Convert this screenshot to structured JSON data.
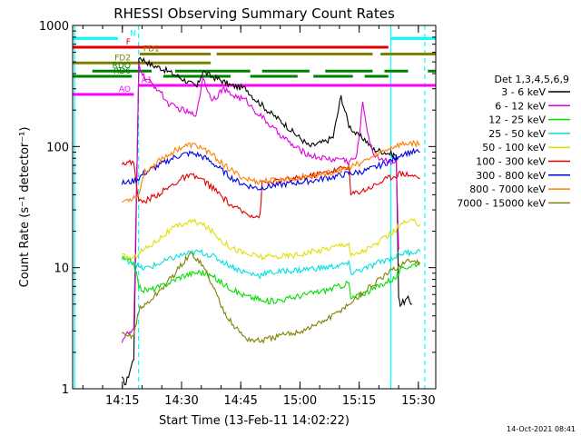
{
  "chart_data": {
    "type": "line",
    "title": "RHESSI Observing Summary Count Rates",
    "xlabel": "Start Time (13-Feb-11 14:02:22)",
    "ylabel": "Count Rate (s⁻¹ detector⁻¹)",
    "ylim": [
      1,
      1000
    ],
    "yscale": "log",
    "xlim_minutes": [
      0,
      92
    ],
    "x_ticks": [
      {
        "t": 12.6,
        "label": "14:15"
      },
      {
        "t": 27.6,
        "label": "14:30"
      },
      {
        "t": 42.6,
        "label": "14:45"
      },
      {
        "t": 57.6,
        "label": "15:00"
      },
      {
        "t": 72.6,
        "label": "15:15"
      },
      {
        "t": 87.6,
        "label": "15:30"
      }
    ],
    "y_ticks": [
      {
        "v": 1,
        "label": "1"
      },
      {
        "v": 10,
        "label": "10"
      },
      {
        "v": 100,
        "label": "100"
      },
      {
        "v": 1000,
        "label": "1000"
      }
    ],
    "legend_title": "Det 1,3,4,5,6,9",
    "legend_position": "right",
    "series": [
      {
        "name": "3 - 6 keV",
        "color": "#000000",
        "t": [
          12.5,
          13.5,
          15.5,
          16.8,
          18,
          20,
          22,
          24,
          26,
          28,
          30,
          31.5,
          33,
          35,
          37,
          38.5,
          40,
          42,
          44,
          46,
          48,
          50,
          52,
          54,
          56,
          58,
          60,
          62,
          64,
          66,
          68,
          70,
          72,
          74,
          75,
          76,
          78,
          80,
          82,
          82.6,
          83,
          85,
          86
        ],
        "values": [
          1.2,
          1.1,
          1.8,
          550,
          520,
          470,
          450,
          420,
          390,
          360,
          330,
          310,
          420,
          380,
          360,
          340,
          320,
          310,
          300,
          250,
          220,
          190,
          170,
          150,
          130,
          115,
          100,
          105,
          110,
          120,
          260,
          150,
          125,
          115,
          105,
          95,
          92,
          88,
          85,
          6,
          5,
          5.5,
          5
        ]
      },
      {
        "name": "6 - 12 keV",
        "color": "#e000e0",
        "t": [
          12.5,
          13.5,
          15.5,
          16.8,
          18,
          20,
          22,
          24,
          26,
          28,
          30,
          31.5,
          33,
          35,
          36.5,
          38,
          40,
          42,
          44,
          46,
          48,
          50,
          52,
          54,
          56,
          58,
          60,
          62,
          64,
          66,
          68,
          70,
          72,
          73.5,
          75,
          76,
          78,
          80,
          82,
          82.6
        ],
        "values": [
          2.5,
          2.8,
          3,
          480,
          380,
          330,
          290,
          230,
          210,
          200,
          185,
          190,
          380,
          250,
          260,
          300,
          270,
          255,
          240,
          200,
          175,
          150,
          130,
          115,
          100,
          92,
          85,
          82,
          80,
          78,
          80,
          75,
          82,
          230,
          120,
          88,
          80,
          76,
          74,
          14
        ]
      },
      {
        "name": "12 - 25 keV",
        "color": "#00e000",
        "t": [
          12.5,
          13.5,
          15.5,
          16.8,
          18,
          20,
          22,
          24,
          26,
          28,
          30,
          32,
          34,
          36,
          38,
          40,
          42,
          44,
          46,
          47.5,
          48,
          50,
          52,
          54,
          56,
          58,
          60,
          62,
          64,
          66,
          68,
          70,
          70.5,
          72,
          74,
          76,
          78,
          80,
          82,
          82.6,
          84,
          86,
          88
        ],
        "values": [
          12,
          11.5,
          11,
          7,
          6.5,
          6.6,
          6.9,
          7.4,
          8,
          8.6,
          8.9,
          9.2,
          8.9,
          8.2,
          7.4,
          6.8,
          6.2,
          5.8,
          5.6,
          5.5,
          5.2,
          5.3,
          5.4,
          5.5,
          5.7,
          5.9,
          6.1,
          6.3,
          6.5,
          6.8,
          7.1,
          7.5,
          5.5,
          5.8,
          6.2,
          6.6,
          7.2,
          7.8,
          8.3,
          9,
          10,
          10.5,
          11
        ]
      },
      {
        "name": "25 - 50 keV",
        "color": "#00e0e0",
        "t": [
          12.5,
          13.5,
          15.5,
          16.8,
          18,
          20,
          22,
          24,
          26,
          28,
          30,
          32,
          34,
          36,
          38,
          40,
          42,
          44,
          46,
          47.5,
          48,
          50,
          52,
          54,
          56,
          58,
          60,
          62,
          64,
          66,
          68,
          70,
          70.5,
          72,
          74,
          76,
          78,
          80,
          82,
          82.6,
          84,
          86,
          88
        ],
        "values": [
          12,
          11.5,
          11.2,
          10,
          9.8,
          10.2,
          10.8,
          11.5,
          12.2,
          12.8,
          13.2,
          13.5,
          13,
          12.2,
          11.2,
          10.4,
          9.6,
          9.1,
          8.8,
          8.6,
          9,
          9.1,
          9.2,
          9.4,
          9.5,
          9.6,
          9.8,
          9.9,
          10,
          10.2,
          10.5,
          10.8,
          9,
          9.4,
          9.8,
          10.4,
          11.2,
          11.8,
          12.4,
          13,
          13.2,
          13.5,
          13.6
        ]
      },
      {
        "name": "50 - 100 keV",
        "color": "#e0e000",
        "t": [
          12.5,
          13.5,
          15.5,
          16.8,
          18,
          20,
          22,
          24,
          26,
          28,
          30,
          32,
          34,
          36,
          38,
          40,
          42,
          44,
          46,
          47.5,
          48,
          50,
          52,
          54,
          56,
          58,
          60,
          62,
          64,
          66,
          68,
          70,
          70.5,
          72,
          74,
          76,
          78,
          80,
          82,
          82.6,
          84,
          86,
          88
        ],
        "values": [
          12.5,
          12.2,
          12,
          13.5,
          14,
          15.5,
          17.5,
          19.5,
          21.5,
          23,
          24,
          23.5,
          21.5,
          19,
          16.5,
          14.8,
          13.8,
          13,
          12.6,
          12.4,
          12.2,
          12.3,
          12.4,
          12.5,
          12.7,
          13,
          13.4,
          13.8,
          14.3,
          14.8,
          15.5,
          16,
          12.5,
          13,
          14,
          15,
          16.5,
          18.5,
          20.5,
          22,
          23.5,
          24,
          23
        ]
      },
      {
        "name": "100 - 300 keV",
        "color": "#e00000",
        "t": [
          12.5,
          13.5,
          15.5,
          16.8,
          18,
          20,
          22,
          24,
          26,
          28,
          30,
          32,
          34,
          36,
          38,
          40,
          42,
          44,
          46,
          47.5,
          48,
          50,
          52,
          54,
          56,
          58,
          60,
          62,
          64,
          66,
          68,
          70,
          70.5,
          72,
          74,
          76,
          78,
          80,
          82,
          82.6,
          84,
          86,
          88
        ],
        "values": [
          75,
          73,
          74,
          35,
          35,
          38,
          41,
          45,
          50,
          55,
          57,
          55,
          50,
          44,
          38,
          33,
          30,
          28,
          27,
          26.5,
          50,
          51,
          52,
          53,
          54,
          55,
          57,
          59,
          61,
          63,
          66,
          69,
          40,
          42,
          44,
          47,
          51,
          55,
          58,
          60,
          60,
          58,
          55
        ]
      },
      {
        "name": "300 - 800 keV",
        "color": "#0000e0",
        "t": [
          12.5,
          13.5,
          15.5,
          16.8,
          18,
          20,
          22,
          24,
          26,
          28,
          30,
          32,
          34,
          36,
          38,
          40,
          42,
          44,
          46,
          47.5,
          48,
          50,
          52,
          54,
          56,
          58,
          60,
          62,
          64,
          66,
          68,
          70,
          70.5,
          72,
          74,
          76,
          78,
          80,
          82,
          82.6,
          84,
          86,
          88
        ],
        "values": [
          50,
          50,
          52,
          55,
          60,
          65,
          70,
          76,
          82,
          86,
          88,
          85,
          79,
          71,
          63,
          56,
          51,
          48,
          46,
          45,
          46,
          47,
          48,
          49,
          50,
          51,
          52,
          53,
          55,
          56,
          58,
          60,
          60,
          61,
          63,
          66,
          70,
          75,
          80,
          85,
          88,
          90,
          90
        ]
      },
      {
        "name": "800 - 7000 keV",
        "color": "#ff8000",
        "t": [
          12.5,
          13.5,
          15.5,
          16.8,
          18,
          20,
          22,
          24,
          26,
          28,
          30,
          32,
          34,
          36,
          38,
          40,
          42,
          44,
          46,
          47.5,
          48,
          50,
          52,
          54,
          56,
          58,
          60,
          62,
          64,
          66,
          68,
          70,
          72,
          74,
          76,
          78,
          80,
          82,
          84,
          86,
          88
        ],
        "values": [
          35,
          36,
          38,
          40,
          60,
          68,
          77,
          85,
          93,
          100,
          103,
          100,
          92,
          82,
          72,
          64,
          58,
          54,
          52,
          51,
          52,
          52,
          53,
          54,
          55,
          56,
          57,
          58,
          60,
          62,
          64,
          67,
          71,
          76,
          82,
          89,
          96,
          102,
          105,
          107,
          105
        ]
      },
      {
        "name": "7000 - 15000 keV",
        "color": "#808000",
        "t": [
          12.5,
          13.5,
          15.5,
          16.8,
          18,
          20,
          22,
          24,
          26,
          28,
          30,
          32,
          34,
          36,
          38,
          40,
          42,
          44,
          46,
          48,
          50,
          52,
          54,
          56,
          58,
          60,
          62,
          64,
          66,
          68,
          70,
          72,
          74,
          76,
          78,
          80,
          82,
          84,
          86,
          88
        ],
        "values": [
          2.8,
          2.7,
          2.8,
          4.5,
          4.8,
          5.5,
          6.4,
          7.6,
          9,
          11,
          13,
          11.5,
          9,
          6.5,
          4.6,
          3.6,
          3,
          2.6,
          2.5,
          2.5,
          2.6,
          2.7,
          2.8,
          2.9,
          3,
          3.2,
          3.4,
          3.7,
          4,
          4.5,
          5,
          5.6,
          6.4,
          7.2,
          8,
          9,
          10,
          11,
          11.5,
          11
        ]
      }
    ],
    "state_bars": [
      {
        "label": "N",
        "color": "#00ffff",
        "level": 780,
        "segments": [
          [
            0,
            11.5
          ],
          [
            80.5,
            92
          ]
        ]
      },
      {
        "label": "F",
        "color": "#e00000",
        "level": 660,
        "segments": [
          [
            0,
            80
          ]
        ]
      },
      {
        "label": "FD1",
        "color": "#808000",
        "level": 580,
        "segments": [
          [
            17,
            35
          ],
          [
            36.5,
            76
          ],
          [
            78,
            92
          ]
        ]
      },
      {
        "label": "FD2",
        "color": "#808000",
        "level": 490,
        "segments": [
          [
            0,
            35
          ]
        ]
      },
      {
        "label": "RDO",
        "color": "#008000",
        "level": 420,
        "segments": [
          [
            5,
            20
          ],
          [
            26,
            45
          ],
          [
            48,
            60
          ],
          [
            64,
            76
          ],
          [
            79,
            85
          ],
          [
            90,
            92
          ]
        ]
      },
      {
        "label": "RD6",
        "color": "#008000",
        "level": 380,
        "segments": [
          [
            0,
            15
          ],
          [
            23,
            40
          ],
          [
            45,
            57
          ],
          [
            61,
            71
          ],
          [
            74,
            80
          ]
        ]
      },
      {
        "label": "AO",
        "color": "#ff00ff",
        "level": 270,
        "segments": [
          [
            0,
            15.5
          ]
        ]
      },
      {
        "label": "A1",
        "color": "#ff00ff",
        "level": 320,
        "segments": [
          [
            16.5,
            92
          ]
        ]
      }
    ],
    "vlines": [
      {
        "t": 0.5,
        "color": "#00ffff",
        "style": "solid"
      },
      {
        "t": 16.7,
        "color": "#00ffff",
        "style": "dashed"
      },
      {
        "t": 80.6,
        "color": "#00ffff",
        "style": "solid"
      },
      {
        "t": 89.2,
        "color": "#00ffff",
        "style": "dashed"
      }
    ]
  },
  "footer": {
    "timestamp": "14-Oct-2021 08:41"
  }
}
